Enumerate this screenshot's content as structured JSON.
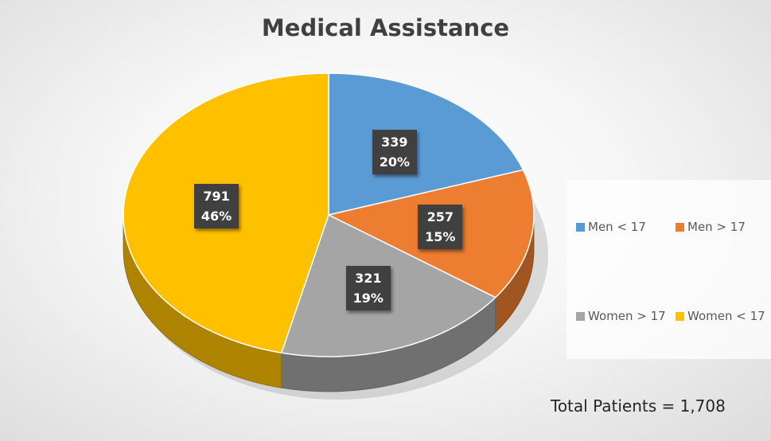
{
  "chart_data": {
    "type": "pie",
    "title": "Medical Assistance",
    "slices": [
      {
        "label": "Men < 17",
        "value": 339,
        "percent_label": "20%",
        "color": "#5b9bd5"
      },
      {
        "label": "Men > 17",
        "value": 257,
        "percent_label": "15%",
        "color": "#ed7d31"
      },
      {
        "label": "Women > 17",
        "value": 321,
        "percent_label": "19%",
        "color": "#a5a5a5"
      },
      {
        "label": "Women < 17",
        "value": 791,
        "percent_label": "46%",
        "color": "#ffc000"
      }
    ],
    "legend_position": "right",
    "start_angle": "12 o'clock",
    "direction": "clockwise",
    "style": "3d"
  },
  "annotation": "Total Patients = 1,708",
  "colors": {
    "data_label_background": "#404040",
    "data_label_text": "#ffffff",
    "title_text": "#404040"
  }
}
